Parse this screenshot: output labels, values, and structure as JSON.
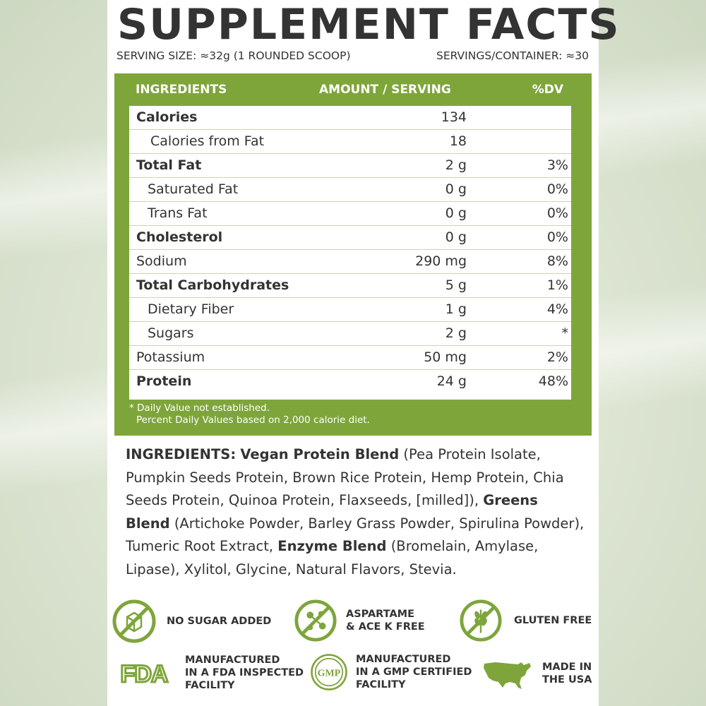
{
  "title": "SUPPLEMENT FACTS",
  "serving_size": "SERVING SIZE: ≈32g (1 ROUNDED SCOOP)",
  "servings_per_container": "SERVINGS/CONTAINER: ≈30",
  "table": {
    "headers": {
      "ingredients": "INGREDIENTS",
      "amount": "AMOUNT / SERVING",
      "dv": "%DV"
    },
    "rows": [
      {
        "name": "Calories",
        "amount": "134",
        "dv": ""
      },
      {
        "name": "Calories from Fat",
        "amount": "18",
        "dv": ""
      },
      {
        "name": "Total Fat",
        "amount": "2 g",
        "dv": "3%"
      },
      {
        "name": "Saturated Fat",
        "amount": "0 g",
        "dv": "0%"
      },
      {
        "name": "Trans Fat",
        "amount": "0 g",
        "dv": "0%"
      },
      {
        "name": "Cholesterol",
        "amount": "0 g",
        "dv": "0%"
      },
      {
        "name": "Sodium",
        "amount": "290 mg",
        "dv": "8%"
      },
      {
        "name": "Total Carbohydrates",
        "amount": "5 g",
        "dv": "1%"
      },
      {
        "name": "Dietary Fiber",
        "amount": "1 g",
        "dv": "4%"
      },
      {
        "name": "Sugars",
        "amount": "2 g",
        "dv": "*"
      },
      {
        "name": "Potassium",
        "amount": "50 mg",
        "dv": "2%"
      },
      {
        "name": "Protein",
        "amount": "24 g",
        "dv": "48%"
      }
    ],
    "footnote_1": "* Daily Value not established.",
    "footnote_2": "Percent Daily Values based on 2,000 calorie diet."
  },
  "ingredients": {
    "label": "INGREDIENTS:",
    "blend1_name": "Vegan Protein Blend",
    "blend1_items": "(Pea Protein Isolate, Pumpkin Seeds Protein, Brown Rice Protein, Hemp Protein, Chia Seeds Protein, Quinoa Protein, Flaxseeds, [milled]),",
    "blend2_name": "Greens Blend",
    "blend2_items": "(Artichoke Powder, Barley Grass Powder, Spirulina Powder), Tumeric Root Extract,",
    "blend3_name": "Enzyme Blend",
    "blend3_items": "(Bromelain, Amylase, Lipase), Xylitol, Glycine, Natural Flavors, Stevia."
  },
  "badges": {
    "no_sugar": {
      "line1": "NO SUGAR ADDED",
      "icon": "no-sugar-icon"
    },
    "aspartame": {
      "line1": "ASPARTAME",
      "line2": "& ACE K FREE",
      "icon": "no-aspartame-icon"
    },
    "gluten": {
      "line1": "GLUTEN FREE",
      "icon": "gluten-free-icon"
    },
    "fda": {
      "logo": "FDA",
      "line1": "MANUFACTURED",
      "line2": "IN A FDA INSPECTED",
      "line3": "FACILITY",
      "icon": "fda-logo"
    },
    "gmp": {
      "logo": "GMP",
      "line1": "MANUFACTURED",
      "line2": "IN A GMP CERTIFIED",
      "line3": "FACILITY",
      "icon": "gmp-seal"
    },
    "usa": {
      "line1": "MADE IN",
      "line2": "THE USA",
      "icon": "usa-map-icon"
    }
  },
  "colors": {
    "accent_green": "#7ea53a",
    "text_dark": "#333333"
  }
}
